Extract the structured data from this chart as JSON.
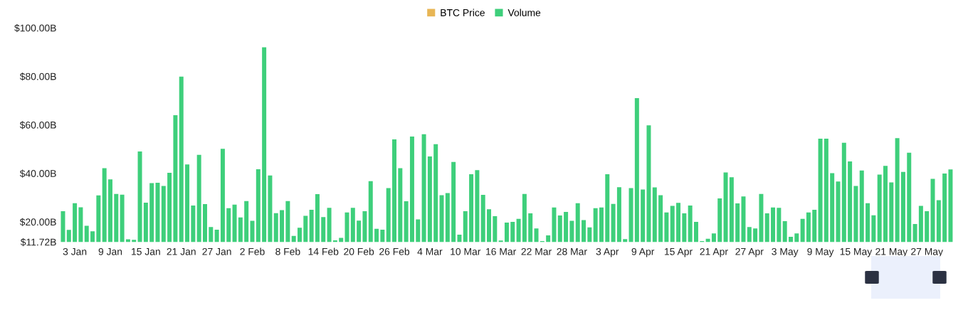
{
  "chart_data": {
    "type": "bar",
    "categories": [
      null,
      null,
      "3 Jan",
      null,
      null,
      null,
      null,
      null,
      "9 Jan",
      null,
      null,
      null,
      null,
      null,
      "15 Jan",
      null,
      null,
      null,
      null,
      null,
      "21 Jan",
      null,
      null,
      null,
      null,
      null,
      "27 Jan",
      null,
      null,
      null,
      null,
      null,
      "2 Feb",
      null,
      null,
      null,
      null,
      null,
      "8 Feb",
      null,
      null,
      null,
      null,
      null,
      "14 Feb",
      null,
      null,
      null,
      null,
      null,
      "20 Feb",
      null,
      null,
      null,
      null,
      null,
      "26 Feb",
      null,
      null,
      null,
      null,
      null,
      "4 Mar",
      null,
      null,
      null,
      null,
      null,
      "10 Mar",
      null,
      null,
      null,
      null,
      null,
      "16 Mar",
      null,
      null,
      null,
      null,
      null,
      "22 Mar",
      null,
      null,
      null,
      null,
      null,
      "28 Mar",
      null,
      null,
      null,
      null,
      null,
      "3 Apr",
      null,
      null,
      null,
      null,
      null,
      "9 Apr",
      null,
      null,
      null,
      null,
      null,
      "15 Apr",
      null,
      null,
      null,
      null,
      null,
      "21 Apr",
      null,
      null,
      null,
      null,
      null,
      "27 Apr",
      null,
      null,
      null,
      null,
      null,
      "3 May",
      null,
      null,
      null,
      null,
      null,
      "9 May",
      null,
      null,
      null,
      null,
      null,
      "15 May",
      null,
      null,
      null,
      null,
      null,
      "21 May",
      null,
      null,
      null,
      null,
      null,
      "27 May",
      null,
      null,
      null,
      null
    ],
    "series": [
      {
        "name": "BTC Price",
        "color": "#e8b655",
        "values": [
          null,
          null,
          null,
          null,
          null,
          null,
          null,
          null,
          null,
          null,
          null,
          null,
          null,
          null,
          null,
          null,
          null,
          null,
          null,
          null,
          null,
          null,
          null,
          null,
          null,
          null,
          null,
          null,
          null,
          null,
          null,
          null,
          null,
          null,
          null,
          null,
          null,
          null,
          null,
          null,
          null,
          null,
          null,
          null,
          null,
          null,
          null,
          null,
          null,
          null,
          null,
          null,
          null,
          null,
          null,
          null,
          null,
          null,
          null,
          null,
          null,
          null,
          null,
          null,
          null,
          null,
          null,
          null,
          null,
          null,
          null,
          null,
          null,
          null,
          null,
          null,
          null,
          null,
          null,
          null,
          null,
          null,
          null,
          null,
          null,
          null,
          null,
          null,
          null,
          null,
          null,
          null,
          null,
          null,
          null,
          null,
          null,
          null,
          null,
          null,
          null,
          null,
          null,
          null,
          null,
          null,
          null,
          null,
          null,
          null,
          null,
          null,
          null,
          null,
          null,
          null,
          null,
          null,
          null,
          null,
          null,
          null,
          null,
          null,
          null,
          null,
          null,
          null,
          null,
          null,
          null,
          null,
          null,
          null,
          null,
          null,
          null,
          null,
          null,
          null,
          null,
          null,
          null,
          null,
          null,
          null,
          null,
          null,
          null,
          null,
          null
        ]
      },
      {
        "name": "Volume",
        "color": "#3ecf7b",
        "values": [
          24.4,
          16.7,
          27.7,
          26.0,
          18.4,
          16.1,
          30.9,
          42.1,
          37.5,
          31.5,
          31.2,
          12.8,
          12.6,
          49.0,
          27.9,
          36.0,
          36.1,
          34.8,
          40.2,
          64.0,
          79.9,
          43.7,
          26.7,
          47.6,
          27.3,
          17.9,
          16.8,
          50.1,
          25.6,
          27.1,
          21.8,
          28.6,
          20.4,
          41.7,
          92.0,
          39.1,
          23.6,
          24.8,
          28.6,
          14.2,
          17.6,
          22.5,
          25.0,
          31.4,
          22.0,
          25.8,
          12.4,
          13.4,
          23.9,
          25.8,
          20.5,
          24.4,
          36.8,
          17.1,
          16.8,
          33.9,
          54.0,
          42.1,
          28.5,
          55.2,
          21.0,
          56.1,
          47.0,
          52.0,
          31.0,
          31.9,
          44.7,
          14.7,
          24.4,
          39.6,
          41.3,
          31.1,
          25.2,
          22.3,
          12.3,
          19.7,
          20.0,
          21.2,
          31.5,
          23.5,
          17.3,
          12.1,
          14.4,
          25.9,
          22.6,
          24.1,
          20.4,
          27.7,
          20.7,
          17.7,
          25.6,
          25.9,
          39.6,
          27.4,
          34.3,
          12.9,
          33.9,
          71.0,
          33.3,
          59.8,
          34.2,
          31.0,
          23.9,
          26.6,
          27.8,
          23.5,
          26.7,
          20.0,
          12.1,
          13.0,
          15.2,
          29.7,
          40.4,
          38.4,
          27.6,
          30.5,
          17.9,
          17.3,
          31.5,
          23.5,
          25.9,
          25.8,
          20.3,
          13.8,
          15.2,
          21.2,
          23.9,
          25.0,
          54.3,
          54.3,
          40.1,
          36.6,
          52.6,
          44.9,
          34.8,
          41.2,
          27.7,
          22.7,
          39.5,
          43.1,
          36.3,
          54.5,
          40.6,
          48.5,
          19.1,
          26.6,
          24.4,
          37.7,
          28.9,
          39.9,
          41.6
        ]
      }
    ],
    "ylim": [
      11.72,
      100
    ],
    "yticks": [
      {
        "value": 11.72,
        "label": "$11.72B"
      },
      {
        "value": 20,
        "label": "$20.00B"
      },
      {
        "value": 40,
        "label": "$40.00B"
      },
      {
        "value": 60,
        "label": "$60.00B"
      },
      {
        "value": 80,
        "label": "$80.00B"
      },
      {
        "value": 100,
        "label": "$100.00B"
      }
    ],
    "legend": "top",
    "grid": false
  }
}
